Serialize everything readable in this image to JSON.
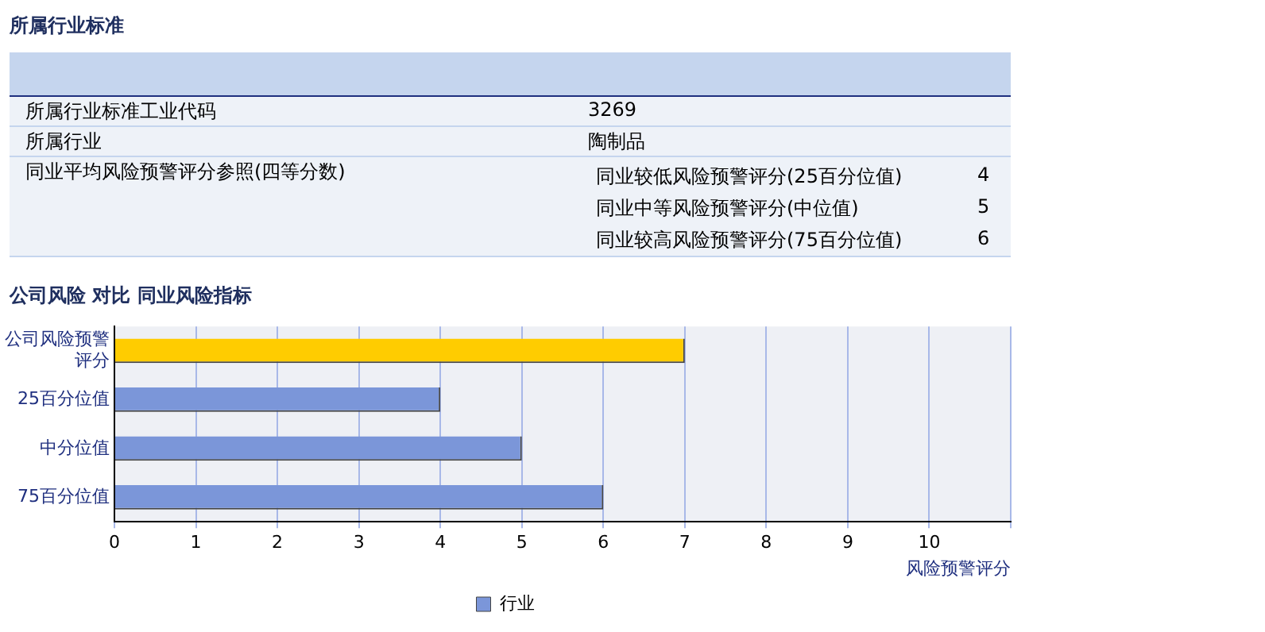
{
  "chart_data": {
    "type": "bar",
    "orientation": "horizontal",
    "title": "公司风险  对比  同业风险指标",
    "xlabel": "风险预警评分",
    "categories": [
      "公司风险预警评分",
      "25百分位值",
      "中分位值",
      "75百分位值"
    ],
    "series": [
      {
        "color": "#ffcc00",
        "values": [
          7,
          null,
          null,
          null
        ]
      },
      {
        "name": "行业",
        "color": "#7b96d9",
        "values": [
          null,
          4,
          5,
          6
        ]
      }
    ],
    "xlim": [
      0,
      11
    ],
    "xticks": [
      0,
      1,
      2,
      3,
      4,
      5,
      6,
      7,
      8,
      9,
      10,
      {
        "value": 11,
        "label": null
      }
    ],
    "grid": "x",
    "legend": "bottom",
    "annotations": [
      "所属行业标准",
      "所属行业标准工业代码",
      "3269",
      "所属行业",
      "陶制品",
      "同业平均风险预警评分参照(四等分数)",
      "同业较低风险预警评分(25百分位值)",
      "4",
      "同业中等风险预警评分(中位值)",
      "5",
      "同业较高风险预警评分(75百分位值)",
      "6"
    ]
  }
}
